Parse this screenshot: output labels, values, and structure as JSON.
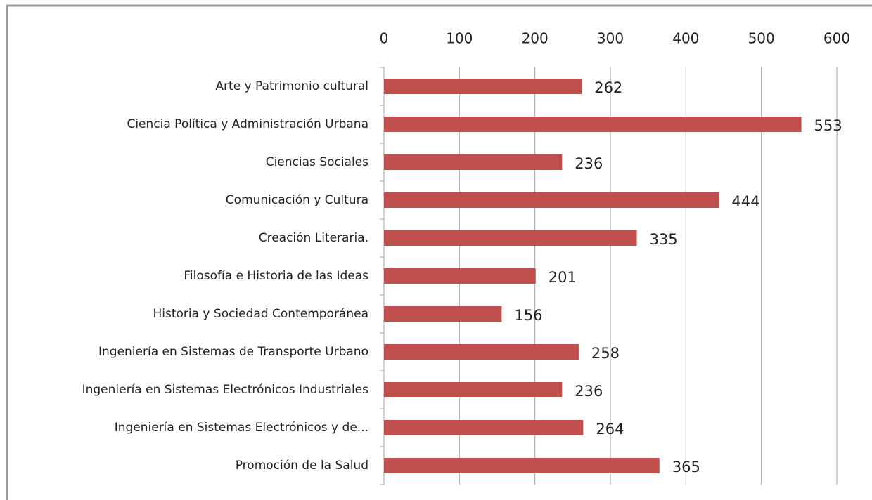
{
  "chart_data": {
    "type": "bar",
    "orientation": "horizontal",
    "categories": [
      "Arte y Patrimonio cultural",
      "Ciencia Política y Administración Urbana",
      "Ciencias Sociales",
      "Comunicación y Cultura",
      "Creación Literaria.",
      "Filosofía e Historia de las Ideas",
      "Historia y Sociedad Contemporánea",
      "Ingeniería en Sistemas de Transporte Urbano",
      "Ingeniería en Sistemas Electrónicos Industriales",
      "Ingeniería en Sistemas Electrónicos y de...",
      "Promoción de la Salud"
    ],
    "values": [
      262,
      553,
      236,
      444,
      335,
      201,
      156,
      258,
      236,
      264,
      365
    ],
    "color": "#c0504d",
    "xlim": [
      0,
      600
    ],
    "xticks": [
      0,
      100,
      200,
      300,
      400,
      500,
      600
    ],
    "grid": true
  }
}
